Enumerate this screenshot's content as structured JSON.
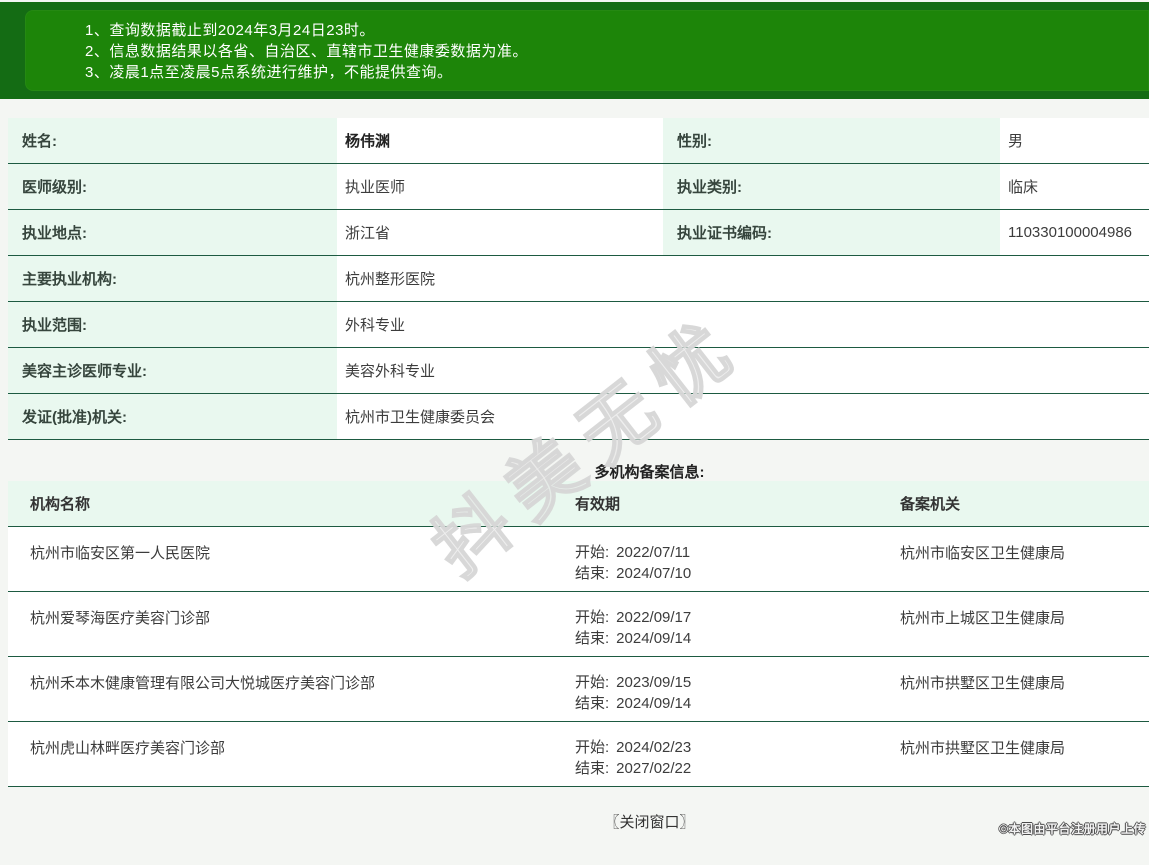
{
  "colors": {
    "banner_outer_green": "#146c14",
    "banner_inner_green": "#1d8509",
    "label_mint": "#e9f8ef",
    "row_border_green": "#1d5a41",
    "page_background": "#f4f6f3"
  },
  "notice": {
    "items": [
      "1、查询数据截止到2024年3月24日23时。",
      "2、信息数据结果以各省、自治区、直辖市卫生健康委数据为准。",
      "3、凌晨1点至凌晨5点系统进行维护，不能提供查询。"
    ]
  },
  "info": {
    "half_rows": [
      {
        "label1": "姓名:",
        "value1": "杨伟渊",
        "label2": "性别:",
        "value2": "男"
      },
      {
        "label1": "医师级别:",
        "value1": "执业医师",
        "label2": "执业类别:",
        "value2": "临床"
      },
      {
        "label1": "执业地点:",
        "value1": "浙江省",
        "label2": "执业证书编码:",
        "value2": "110330100004986"
      }
    ],
    "full_rows": [
      {
        "label": "主要执业机构:",
        "value": "杭州整形医院"
      },
      {
        "label": "执业范围:",
        "value": "外科专业"
      },
      {
        "label": "美容主诊医师专业:",
        "value": "美容外科专业"
      },
      {
        "label": "发证(批准)机关:",
        "value": "杭州市卫生健康委员会"
      }
    ]
  },
  "records": {
    "title": "多机构备案信息:",
    "headers": [
      "机构名称",
      "有效期",
      "备案机关"
    ],
    "start_label": "开始:",
    "end_label": "结束:",
    "rows": [
      {
        "name": "杭州市临安区第一人民医院",
        "start": "2022/07/11",
        "end": "2024/07/10",
        "authority": "杭州市临安区卫生健康局"
      },
      {
        "name": "杭州爱琴海医疗美容门诊部",
        "start": "2022/09/17",
        "end": "2024/09/14",
        "authority": "杭州市上城区卫生健康局"
      },
      {
        "name": "杭州禾本木健康管理有限公司大悦城医疗美容门诊部",
        "start": "2023/09/15",
        "end": "2024/09/14",
        "authority": "杭州市拱墅区卫生健康局"
      },
      {
        "name": "杭州虎山林畔医疗美容门诊部",
        "start": "2024/02/23",
        "end": "2027/02/22",
        "authority": "杭州市拱墅区卫生健康局"
      }
    ]
  },
  "footer": {
    "close_label": "〖关闭窗口〗",
    "credit": "©本图由平台注册用户上传"
  },
  "watermark": {
    "text": "抖美无忧"
  }
}
